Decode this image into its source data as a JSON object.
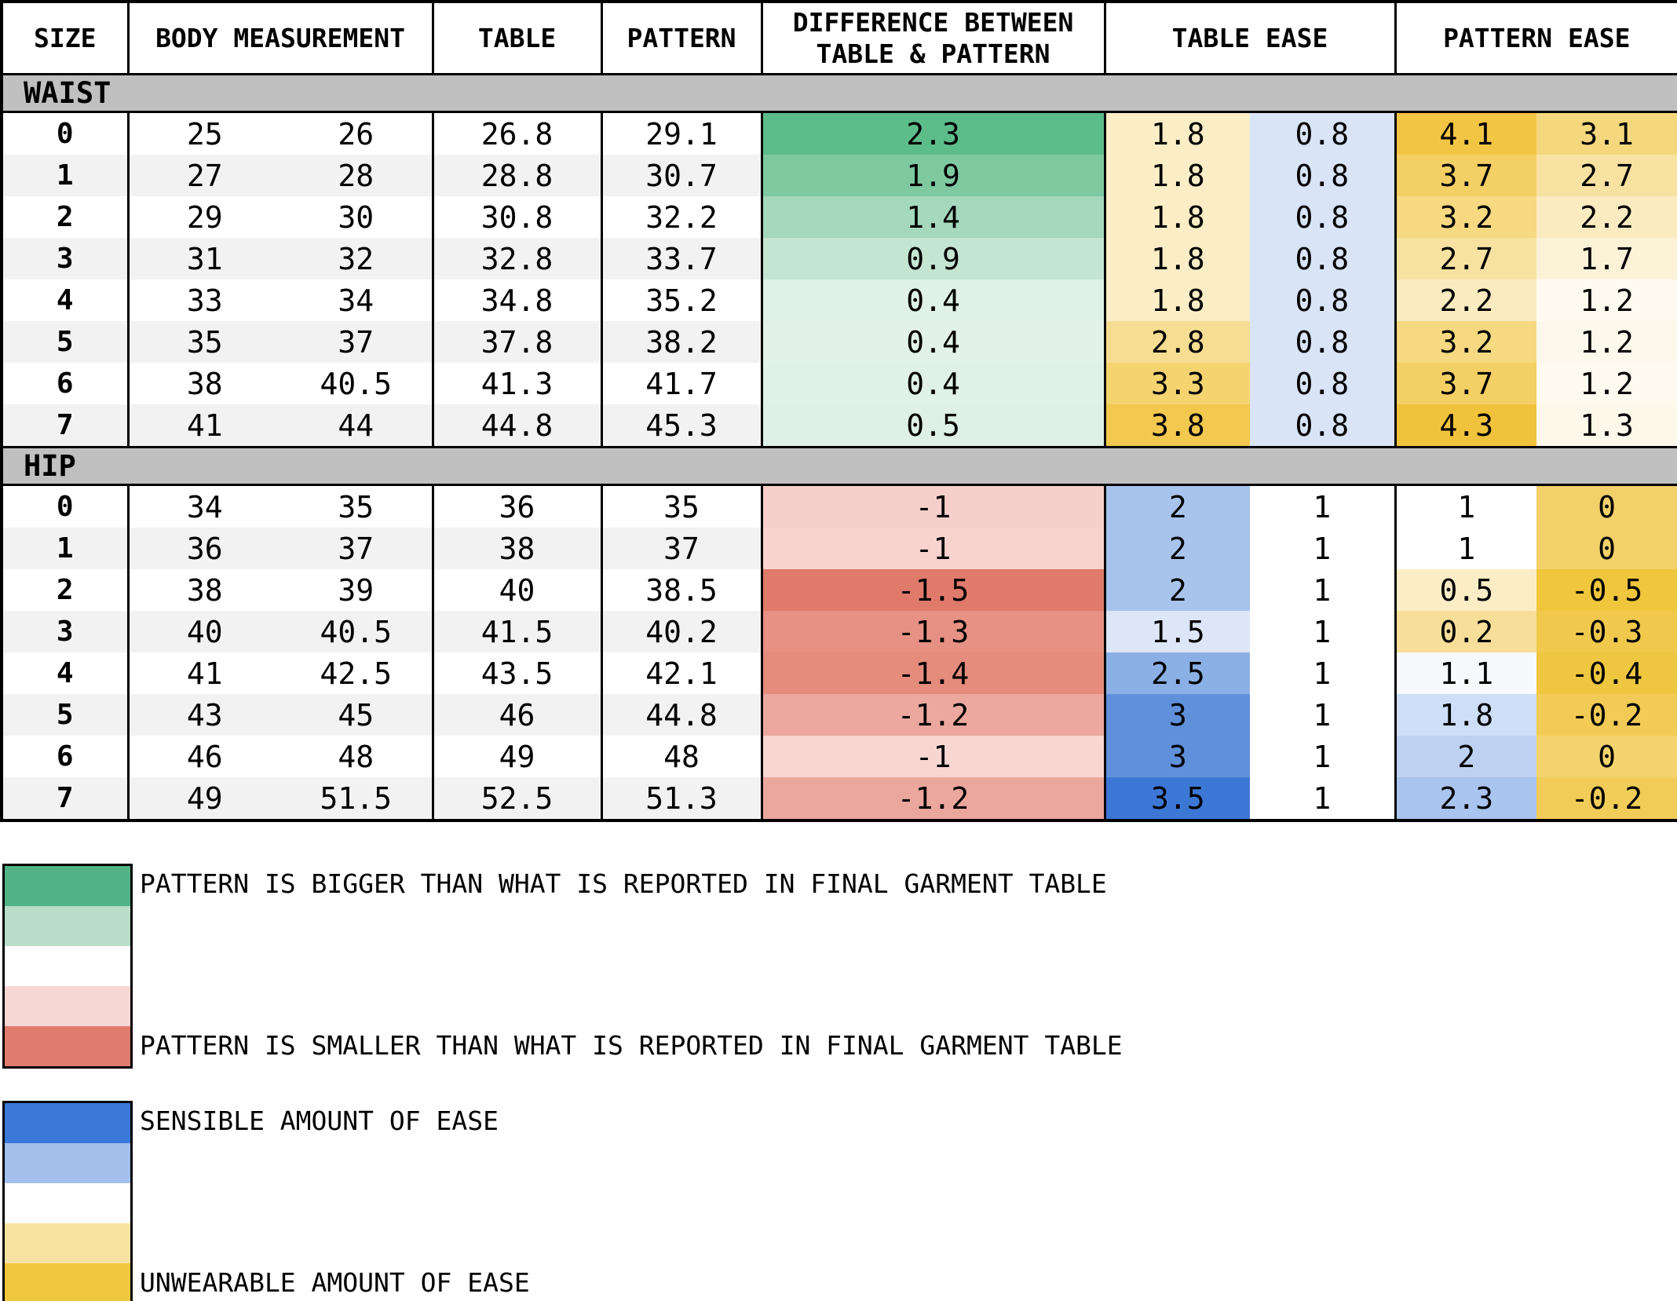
{
  "chart_data": {
    "type": "table",
    "header": {
      "size": "SIZE",
      "body_measurement": "BODY MEASUREMENT",
      "table": "TABLE",
      "pattern": "PATTERN",
      "difference_line1": "DIFFERENCE BETWEEN",
      "difference_line2": "TABLE & PATTERN",
      "table_ease": "TABLE EASE",
      "pattern_ease": "PATTERN EASE"
    },
    "sections": [
      {
        "name": "WAIST",
        "rows": [
          {
            "size": "0",
            "body": [
              "25",
              "26"
            ],
            "table": "26.8",
            "pattern": "29.1",
            "diff": {
              "v": "2.3",
              "bg": "#5cbc8a"
            },
            "table_ease": [
              {
                "v": "1.8",
                "bg": "#fbeec6"
              },
              {
                "v": "0.8",
                "bg": "#d9e4f7"
              }
            ],
            "pattern_ease": [
              {
                "v": "4.1",
                "bg": "#f2c544"
              },
              {
                "v": "3.1",
                "bg": "#f5d77d"
              }
            ]
          },
          {
            "size": "1",
            "body": [
              "27",
              "28"
            ],
            "table": "28.8",
            "pattern": "30.7",
            "diff": {
              "v": "1.9",
              "bg": "#7fc9a1"
            },
            "table_ease": [
              {
                "v": "1.8",
                "bg": "#fbeec6"
              },
              {
                "v": "0.8",
                "bg": "#d9e4f7"
              }
            ],
            "pattern_ease": [
              {
                "v": "3.7",
                "bg": "#f4cf63"
              },
              {
                "v": "2.7",
                "bg": "#f8e2a2"
              }
            ]
          },
          {
            "size": "2",
            "body": [
              "29",
              "30"
            ],
            "table": "30.8",
            "pattern": "32.2",
            "diff": {
              "v": "1.4",
              "bg": "#a5d8bd"
            },
            "table_ease": [
              {
                "v": "1.8",
                "bg": "#fbeec6"
              },
              {
                "v": "0.8",
                "bg": "#d9e4f7"
              }
            ],
            "pattern_ease": [
              {
                "v": "3.2",
                "bg": "#f6d980"
              },
              {
                "v": "2.2",
                "bg": "#faebc1"
              }
            ]
          },
          {
            "size": "3",
            "body": [
              "31",
              "32"
            ],
            "table": "32.8",
            "pattern": "33.7",
            "diff": {
              "v": "0.9",
              "bg": "#c4e5d2"
            },
            "table_ease": [
              {
                "v": "1.8",
                "bg": "#fbeec6"
              },
              {
                "v": "0.8",
                "bg": "#d9e4f7"
              }
            ],
            "pattern_ease": [
              {
                "v": "2.7",
                "bg": "#f8e2a2"
              },
              {
                "v": "1.7",
                "bg": "#fcf2d8"
              }
            ]
          },
          {
            "size": "4",
            "body": [
              "33",
              "34"
            ],
            "table": "34.8",
            "pattern": "35.2",
            "diff": {
              "v": "0.4",
              "bg": "#dff1e8"
            },
            "table_ease": [
              {
                "v": "1.8",
                "bg": "#fbeec6"
              },
              {
                "v": "0.8",
                "bg": "#d9e4f7"
              }
            ],
            "pattern_ease": [
              {
                "v": "2.2",
                "bg": "#faebc1"
              },
              {
                "v": "1.2",
                "bg": "#fefaf0"
              }
            ]
          },
          {
            "size": "5",
            "body": [
              "35",
              "37"
            ],
            "table": "37.8",
            "pattern": "38.2",
            "diff": {
              "v": "0.4",
              "bg": "#e2f2ea"
            },
            "table_ease": [
              {
                "v": "2.8",
                "bg": "#f7dd92"
              },
              {
                "v": "0.8",
                "bg": "#d9e4f7"
              }
            ],
            "pattern_ease": [
              {
                "v": "3.2",
                "bg": "#f6d980"
              },
              {
                "v": "1.2",
                "bg": "#fdf8ec"
              }
            ]
          },
          {
            "size": "6",
            "body": [
              "38",
              "40.5"
            ],
            "table": "41.3",
            "pattern": "41.7",
            "diff": {
              "v": "0.4",
              "bg": "#dff1e8"
            },
            "table_ease": [
              {
                "v": "3.3",
                "bg": "#f5d470"
              },
              {
                "v": "0.8",
                "bg": "#d9e4f7"
              }
            ],
            "pattern_ease": [
              {
                "v": "3.7",
                "bg": "#f4cf63"
              },
              {
                "v": "1.2",
                "bg": "#fefaf0"
              }
            ]
          },
          {
            "size": "7",
            "body": [
              "41",
              "44"
            ],
            "table": "44.8",
            "pattern": "45.3",
            "diff": {
              "v": "0.5",
              "bg": "#def0e7"
            },
            "table_ease": [
              {
                "v": "3.8",
                "bg": "#f2c84f"
              },
              {
                "v": "0.8",
                "bg": "#d9e4f7"
              }
            ],
            "pattern_ease": [
              {
                "v": "4.3",
                "bg": "#f1c33c"
              },
              {
                "v": "1.3",
                "bg": "#fdf8ea"
              }
            ]
          }
        ]
      },
      {
        "name": "HIP",
        "rows": [
          {
            "size": "0",
            "body": [
              "34",
              "35"
            ],
            "table": "36",
            "pattern": "35",
            "diff": {
              "v": "-1",
              "bg": "#f6cfcc"
            },
            "table_ease": [
              {
                "v": "2",
                "bg": "#a8c4ec"
              },
              {
                "v": "1",
                "bg": "#ffffff"
              }
            ],
            "pattern_ease": [
              {
                "v": "1",
                "bg": "#ffffff"
              },
              {
                "v": "0",
                "bg": "#f2d06a"
              }
            ]
          },
          {
            "size": "1",
            "body": [
              "36",
              "37"
            ],
            "table": "38",
            "pattern": "37",
            "diff": {
              "v": "-1",
              "bg": "#f7d2cf"
            },
            "table_ease": [
              {
                "v": "2",
                "bg": "#a8c4ec"
              },
              {
                "v": "1",
                "bg": "#ffffff"
              }
            ],
            "pattern_ease": [
              {
                "v": "1",
                "bg": "#ffffff"
              },
              {
                "v": "0",
                "bg": "#f2d06a"
              }
            ]
          },
          {
            "size": "2",
            "body": [
              "38",
              "39"
            ],
            "table": "40",
            "pattern": "38.5",
            "diff": {
              "v": "-1.5",
              "bg": "#e07a6b"
            },
            "table_ease": [
              {
                "v": "2",
                "bg": "#a8c4ec"
              },
              {
                "v": "1",
                "bg": "#ffffff"
              }
            ],
            "pattern_ease": [
              {
                "v": "0.5",
                "bg": "#fbeec6"
              },
              {
                "v": "-0.5",
                "bg": "#efc63c"
              }
            ]
          },
          {
            "size": "3",
            "body": [
              "40",
              "40.5"
            ],
            "table": "41.5",
            "pattern": "40.2",
            "diff": {
              "v": "-1.3",
              "bg": "#e69183"
            },
            "table_ease": [
              {
                "v": "1.5",
                "bg": "#dce6f7"
              },
              {
                "v": "1",
                "bg": "#ffffff"
              }
            ],
            "pattern_ease": [
              {
                "v": "0.2",
                "bg": "#f7df99"
              },
              {
                "v": "-0.3",
                "bg": "#f0c94c"
              }
            ]
          },
          {
            "size": "4",
            "body": [
              "41",
              "42.5"
            ],
            "table": "43.5",
            "pattern": "42.1",
            "diff": {
              "v": "-1.4",
              "bg": "#e58c7d"
            },
            "table_ease": [
              {
                "v": "2.5",
                "bg": "#8bb0e5"
              },
              {
                "v": "1",
                "bg": "#ffffff"
              }
            ],
            "pattern_ease": [
              {
                "v": "1.1",
                "bg": "#f7f9fd"
              },
              {
                "v": "-0.4",
                "bg": "#efc640"
              }
            ]
          },
          {
            "size": "5",
            "body": [
              "43",
              "45"
            ],
            "table": "46",
            "pattern": "44.8",
            "diff": {
              "v": "-1.2",
              "bg": "#eca89e"
            },
            "table_ease": [
              {
                "v": "3",
                "bg": "#6090da"
              },
              {
                "v": "1",
                "bg": "#ffffff"
              }
            ],
            "pattern_ease": [
              {
                "v": "1.8",
                "bg": "#cfdef7"
              },
              {
                "v": "-0.2",
                "bg": "#f1cb55"
              }
            ]
          },
          {
            "size": "6",
            "body": [
              "46",
              "48"
            ],
            "table": "49",
            "pattern": "48",
            "diff": {
              "v": "-1",
              "bg": "#f8d6d2"
            },
            "table_ease": [
              {
                "v": "3",
                "bg": "#6090da"
              },
              {
                "v": "1",
                "bg": "#ffffff"
              }
            ],
            "pattern_ease": [
              {
                "v": "2",
                "bg": "#bed1f2"
              },
              {
                "v": "0",
                "bg": "#f3d46e"
              }
            ]
          },
          {
            "size": "7",
            "body": [
              "49",
              "51.5"
            ],
            "table": "52.5",
            "pattern": "51.3",
            "diff": {
              "v": "-1.2",
              "bg": "#eba79d"
            },
            "table_ease": [
              {
                "v": "3.5",
                "bg": "#3d77d6"
              },
              {
                "v": "1",
                "bg": "#ffffff"
              }
            ],
            "pattern_ease": [
              {
                "v": "2.3",
                "bg": "#a9c4ee"
              },
              {
                "v": "-0.2",
                "bg": "#f1cc58"
              }
            ]
          }
        ]
      }
    ],
    "legends": [
      {
        "stripes": [
          "#52b486",
          "#b9ddc9",
          "#ffffff",
          "#f6d7d4",
          "#e07b70"
        ],
        "top_label": "PATTERN IS BIGGER THAN WHAT IS REPORTED IN FINAL GARMENT TABLE",
        "bottom_label": "PATTERN IS SMALLER THAN WHAT IS REPORTED IN FINAL GARMENT TABLE"
      },
      {
        "stripes": [
          "#3b78d8",
          "#a3bfec",
          "#ffffff",
          "#f7e3a1",
          "#f0c83e"
        ],
        "top_label": "SENSIBLE AMOUNT OF EASE",
        "bottom_label": "UNWEARABLE AMOUNT OF EASE"
      }
    ],
    "style": {
      "section_band_bg": "#c0c0c0",
      "row_stripe_bg": "#f2f2f2",
      "border_color": "#000000"
    }
  }
}
